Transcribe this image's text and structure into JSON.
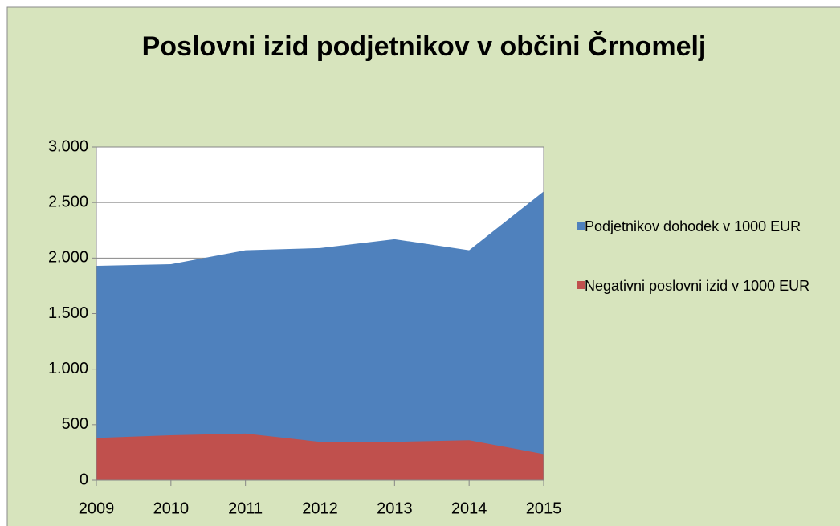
{
  "chart_data": {
    "type": "area",
    "title": "Poslovni izid podjetnikov v občini Črnomelj",
    "categories": [
      "2009",
      "2010",
      "2011",
      "2012",
      "2013",
      "2014",
      "2015"
    ],
    "series": [
      {
        "name": "Podjetnikov dohodek v 1000 EUR",
        "color": "#4f81bd",
        "values": [
          1930,
          1945,
          2070,
          2090,
          2170,
          2070,
          2600
        ]
      },
      {
        "name": "Negativni poslovni izid v 1000 EUR",
        "color": "#c0504d",
        "values": [
          380,
          405,
          420,
          345,
          345,
          360,
          235
        ]
      }
    ],
    "ylim": [
      0,
      3000
    ],
    "yticks": [
      0,
      500,
      {
        "value": 1000,
        "label": "1.000"
      },
      {
        "value": 1500,
        "label": "1.500"
      },
      {
        "value": 2000,
        "label": "2.000"
      },
      {
        "value": 2500,
        "label": "2.500"
      },
      {
        "value": 3000,
        "label": "3.000"
      }
    ],
    "grid": true,
    "legend": "right"
  }
}
